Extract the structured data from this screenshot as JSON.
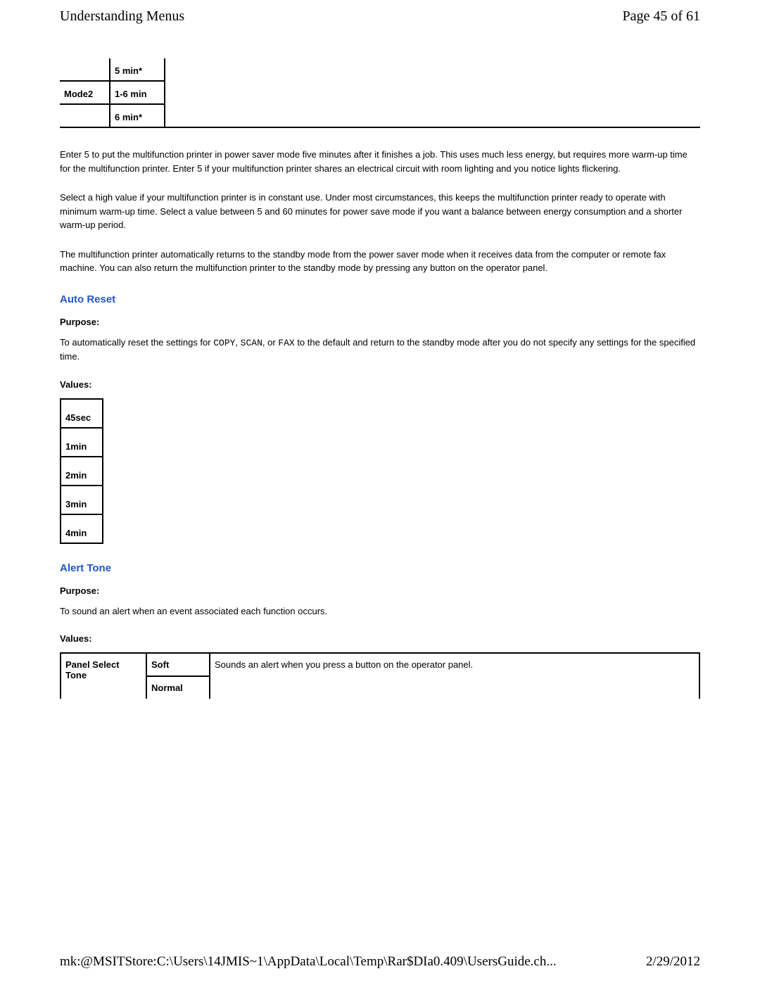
{
  "header": {
    "title": "Understanding Menus",
    "page": "Page 45 of 61"
  },
  "topTable": {
    "r1c2": "5 min*",
    "r2c1": "Mode2",
    "r2c2": "1-6 min",
    "r3c2": "6 min*"
  },
  "paragraphs": {
    "p1": "Enter 5 to put the multifunction printer in power saver mode five minutes after it finishes a job. This uses much less energy, but requires more warm-up time for the multifunction printer. Enter 5 if your multifunction printer shares an electrical circuit with room lighting and you notice lights flickering.",
    "p2": "Select a high value if your multifunction printer is in constant use. Under most circumstances, this keeps the multifunction printer ready to operate with minimum warm-up time. Select a value between 5 and 60 minutes for power save mode if you want a balance between energy consumption and a shorter warm-up period.",
    "p3": "The multifunction printer automatically returns to the standby mode from the power saver mode when it receives data from the computer or remote fax machine. You can also return the multifunction printer to the standby mode by pressing any button on the operator panel."
  },
  "autoReset": {
    "heading": "Auto Reset",
    "purposeLabel": "Purpose:",
    "purpose_pre": "To automatically reset the settings for ",
    "purpose_copy": "COPY",
    "purpose_s1": ", ",
    "purpose_scan": "SCAN",
    "purpose_s2": ", or ",
    "purpose_fax": "FAX",
    "purpose_post": " to the default and return to the standby mode after you do not specify any settings for the specified time.",
    "valuesLabel": "Values:",
    "values": {
      "v1": "45sec",
      "v2": "1min",
      "v3": "2min",
      "v4": "3min",
      "v5": "4min"
    }
  },
  "alertTone": {
    "heading": "Alert Tone",
    "purposeLabel": "Purpose:",
    "purpose": "To sound an alert when an event associated each function occurs.",
    "valuesLabel": "Values:",
    "row1name": "Panel Select Tone",
    "row1v1": "Soft",
    "row1desc": "Sounds an alert when you press a button on the operator panel.",
    "row2v1": "Normal"
  },
  "footer": {
    "path": "mk:@MSITStore:C:\\Users\\14JMIS~1\\AppData\\Local\\Temp\\Rar$DIa0.409\\UsersGuide.ch...",
    "date": "2/29/2012"
  }
}
